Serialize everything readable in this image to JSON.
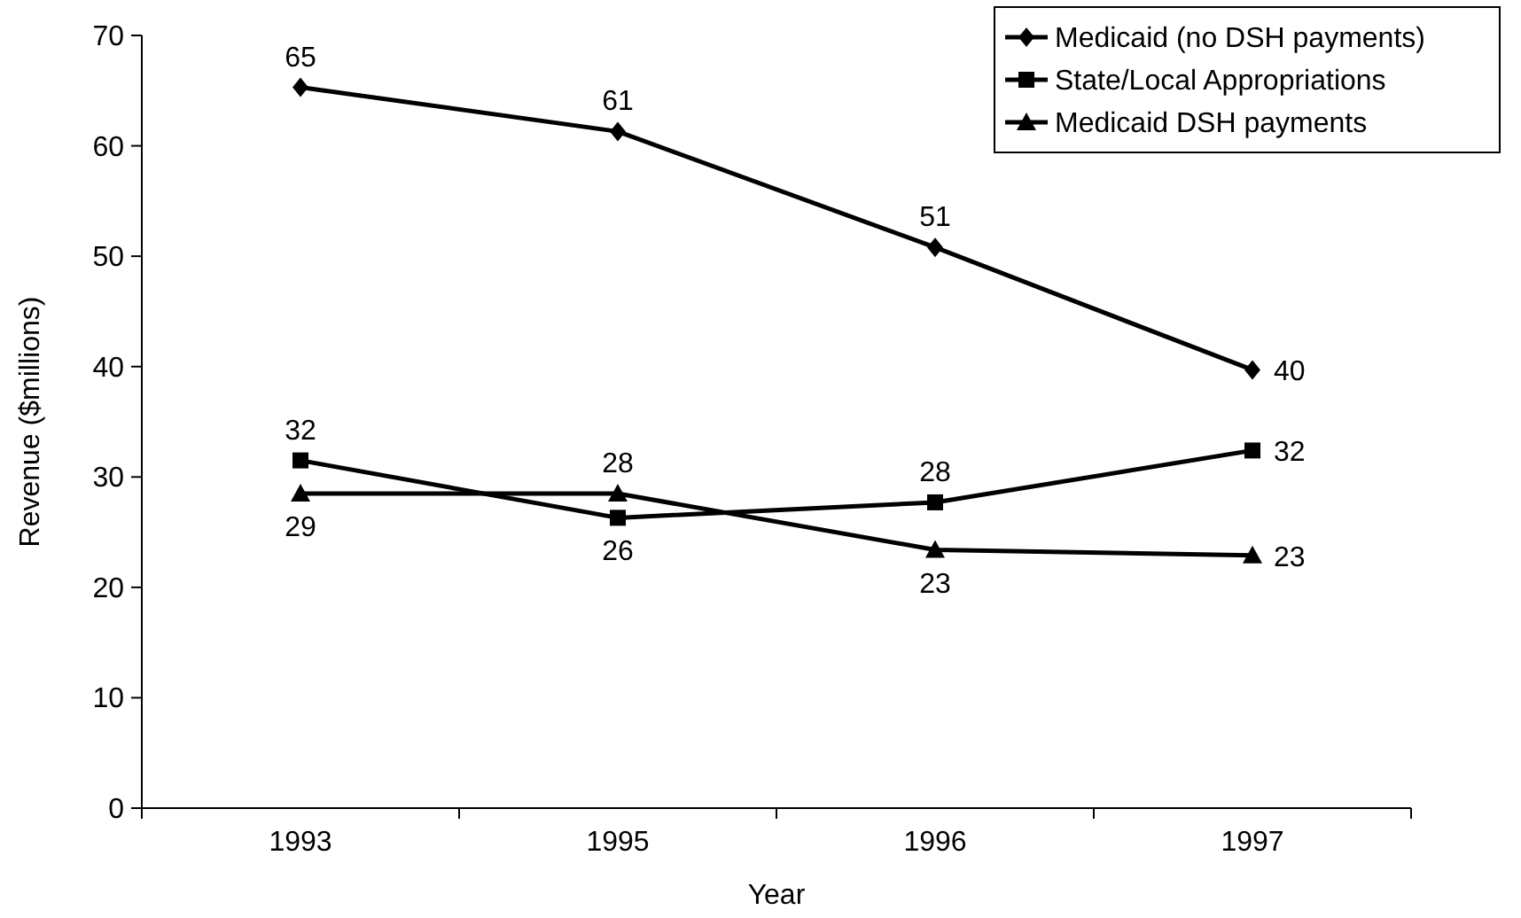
{
  "chart_data": {
    "type": "line",
    "xlabel": "Year",
    "ylabel": "Revenue ($millions)",
    "categories": [
      "1993",
      "1995",
      "1996",
      "1997"
    ],
    "series": [
      {
        "name": "Medicaid (no DSH payments)",
        "color": "#000000",
        "marker": "diamond",
        "values": [
          65.3,
          61.3,
          50.8,
          39.7
        ],
        "value_labels": [
          "65",
          "61",
          "51",
          "40"
        ]
      },
      {
        "name": "State/Local Appropriations",
        "color": "#000000",
        "marker": "square",
        "values": [
          31.5,
          26.3,
          27.7,
          32.4
        ],
        "value_labels": [
          "32",
          "26",
          "28",
          "32"
        ]
      },
      {
        "name": "Medicaid DSH payments",
        "color": "#000000",
        "marker": "triangle",
        "values": [
          28.5,
          28.5,
          23.4,
          22.9
        ],
        "value_labels": [
          "29",
          "28",
          "23",
          "23"
        ]
      }
    ],
    "ylim": [
      0,
      70
    ],
    "yticks": [
      0,
      10,
      20,
      30,
      40,
      50,
      60,
      70
    ],
    "grid": false,
    "legend": "top right",
    "line_style": "solid"
  }
}
